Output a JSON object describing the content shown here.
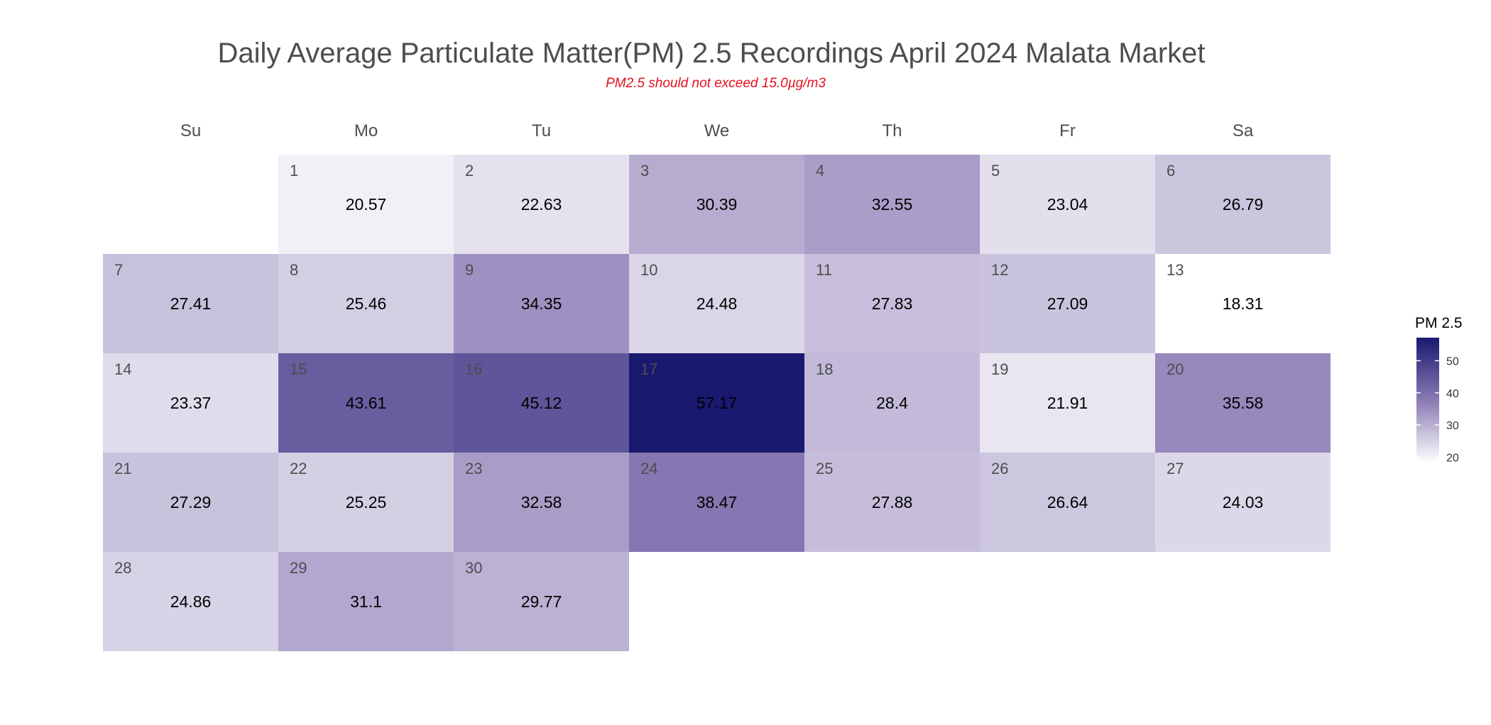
{
  "chart_data": {
    "type": "heatmap",
    "title": "Daily Average Particulate Matter(PM) 2.5 Recordings April 2024 Malata Market",
    "subtitle": "PM2.5 should not exceed 15.0µg/m3",
    "weekdays": [
      "Su",
      "Mo",
      "Tu",
      "We",
      "Th",
      "Fr",
      "Sa"
    ],
    "first_weekday_index": 1,
    "days": [
      1,
      2,
      3,
      4,
      5,
      6,
      7,
      8,
      9,
      10,
      11,
      12,
      13,
      14,
      15,
      16,
      17,
      18,
      19,
      20,
      21,
      22,
      23,
      24,
      25,
      26,
      27,
      28,
      29,
      30
    ],
    "values": [
      20.57,
      22.63,
      30.39,
      32.55,
      23.04,
      26.79,
      27.41,
      25.46,
      34.35,
      24.48,
      27.83,
      27.09,
      18.31,
      23.37,
      43.61,
      45.12,
      57.17,
      28.4,
      21.91,
      35.58,
      27.29,
      25.25,
      32.58,
      38.47,
      27.88,
      26.64,
      24.03,
      24.86,
      31.1,
      29.77
    ],
    "value_labels": [
      "20.57",
      "22.63",
      "30.39",
      "32.55",
      "23.04",
      "26.79",
      "27.41",
      "25.46",
      "34.35",
      "24.48",
      "27.83",
      "27.09",
      "18.31",
      "23.37",
      "43.61",
      "45.12",
      "57.17",
      "28.4",
      "21.91",
      "35.58",
      "27.29",
      "25.25",
      "32.58",
      "38.47",
      "27.88",
      "26.64",
      "24.03",
      "24.86",
      "31.1",
      "29.77"
    ],
    "legend": {
      "title": "PM 2.5",
      "ticks": [
        20,
        30,
        40,
        50
      ],
      "range": [
        18.31,
        57.17
      ],
      "placement": "right"
    },
    "colors": {
      "low": "#ffffff",
      "mid": "#8a7ab4",
      "high": "#191970"
    }
  }
}
